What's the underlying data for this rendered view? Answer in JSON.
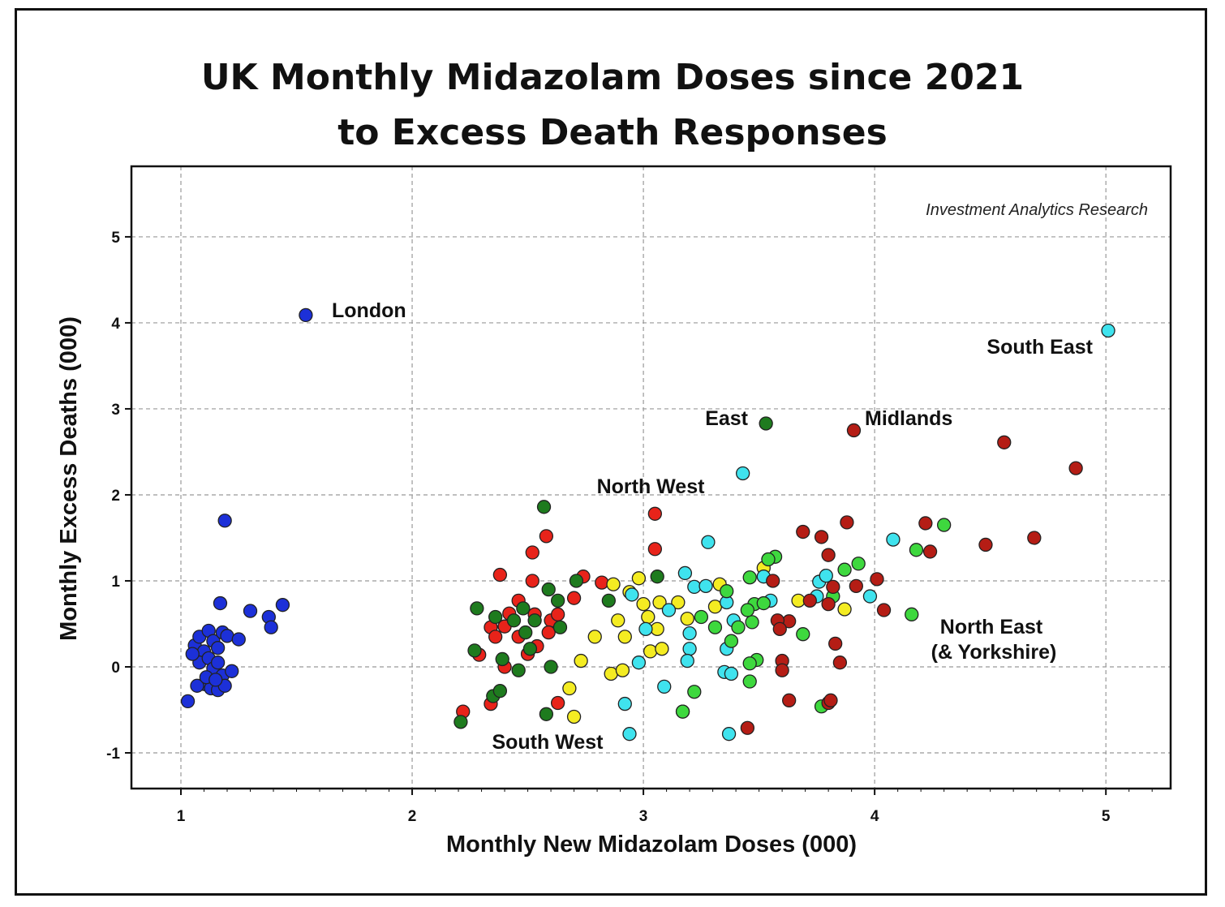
{
  "chart_data": {
    "type": "scatter",
    "title": [
      "UK Monthly Midazolam Doses since 2021",
      "to Excess Death Responses"
    ],
    "xlabel": "Monthly New Midazolam Doses (000)",
    "ylabel": "Monthly Excess Deaths (000)",
    "xlim": [
      0.786,
      5.28
    ],
    "ylim": [
      -1.415,
      5.82
    ],
    "xticks": [
      1,
      2,
      3,
      4,
      5
    ],
    "yticks": [
      -1,
      0,
      1,
      2,
      3,
      4,
      5
    ],
    "grid": true,
    "watermark": "Investment Analytics Research",
    "annotations": [
      "London",
      "South East",
      "East",
      "Midlands",
      "North West",
      "North East",
      "(& Yorkshire)",
      "South West"
    ],
    "series": [
      {
        "name": "London",
        "color": "#1c30d8",
        "points": [
          [
            1.54,
            4.09
          ],
          [
            1.19,
            1.7
          ],
          [
            1.17,
            0.74
          ],
          [
            1.3,
            0.65
          ],
          [
            1.44,
            0.72
          ],
          [
            1.38,
            0.58
          ],
          [
            1.39,
            0.46
          ],
          [
            1.03,
            -0.4
          ],
          [
            1.06,
            0.25
          ],
          [
            1.08,
            0.35
          ],
          [
            1.1,
            0.18
          ],
          [
            1.12,
            0.42
          ],
          [
            1.14,
            0.3
          ],
          [
            1.16,
            0.22
          ],
          [
            1.18,
            0.4
          ],
          [
            1.2,
            0.36
          ],
          [
            1.25,
            0.32
          ],
          [
            1.08,
            0.05
          ],
          [
            1.12,
            0.1
          ],
          [
            1.14,
            -0.02
          ],
          [
            1.16,
            0.05
          ],
          [
            1.18,
            -0.1
          ],
          [
            1.22,
            -0.05
          ],
          [
            1.1,
            -0.2
          ],
          [
            1.13,
            -0.25
          ],
          [
            1.16,
            -0.27
          ],
          [
            1.19,
            -0.22
          ],
          [
            1.07,
            -0.22
          ],
          [
            1.11,
            -0.12
          ],
          [
            1.15,
            -0.15
          ],
          [
            1.05,
            0.15
          ]
        ]
      },
      {
        "name": "South West",
        "color": "#e8231a",
        "points": [
          [
            3.05,
            1.78
          ],
          [
            3.05,
            1.37
          ],
          [
            2.58,
            1.52
          ],
          [
            2.52,
            1.33
          ],
          [
            2.38,
            1.07
          ],
          [
            2.52,
            1.0
          ],
          [
            2.74,
            1.05
          ],
          [
            2.82,
            0.98
          ],
          [
            2.46,
            0.77
          ],
          [
            2.7,
            0.8
          ],
          [
            2.53,
            0.61
          ],
          [
            2.42,
            0.62
          ],
          [
            2.34,
            0.46
          ],
          [
            2.36,
            0.35
          ],
          [
            2.46,
            0.35
          ],
          [
            2.54,
            0.24
          ],
          [
            2.6,
            0.54
          ],
          [
            2.63,
            0.61
          ],
          [
            2.29,
            0.14
          ],
          [
            2.4,
            0.0
          ],
          [
            2.22,
            -0.52
          ],
          [
            2.34,
            -0.43
          ],
          [
            2.63,
            -0.42
          ],
          [
            2.5,
            0.15
          ],
          [
            2.4,
            0.47
          ],
          [
            2.59,
            0.4
          ]
        ]
      },
      {
        "name": "East",
        "color": "#1e7b1e",
        "points": [
          [
            2.57,
            1.86
          ],
          [
            2.28,
            0.68
          ],
          [
            2.36,
            0.58
          ],
          [
            2.48,
            0.68
          ],
          [
            2.59,
            0.9
          ],
          [
            2.63,
            0.77
          ],
          [
            2.44,
            0.54
          ],
          [
            2.53,
            0.54
          ],
          [
            2.49,
            0.4
          ],
          [
            2.64,
            0.46
          ],
          [
            2.27,
            0.19
          ],
          [
            2.39,
            0.09
          ],
          [
            2.46,
            -0.04
          ],
          [
            2.6,
            0.0
          ],
          [
            2.35,
            -0.34
          ],
          [
            2.38,
            -0.28
          ],
          [
            2.21,
            -0.64
          ],
          [
            2.58,
            -0.55
          ],
          [
            2.71,
            1.0
          ],
          [
            2.85,
            0.77
          ],
          [
            3.06,
            1.05
          ],
          [
            3.53,
            2.83
          ],
          [
            2.51,
            0.21
          ]
        ]
      },
      {
        "name": "North West",
        "color": "#f4ec22",
        "points": [
          [
            2.87,
            0.96
          ],
          [
            2.98,
            1.03
          ],
          [
            2.94,
            0.87
          ],
          [
            3.0,
            0.73
          ],
          [
            3.07,
            0.75
          ],
          [
            2.89,
            0.54
          ],
          [
            2.92,
            0.35
          ],
          [
            2.79,
            0.35
          ],
          [
            2.73,
            0.07
          ],
          [
            2.68,
            -0.25
          ],
          [
            2.7,
            -0.58
          ],
          [
            2.86,
            -0.08
          ],
          [
            2.91,
            -0.04
          ],
          [
            3.02,
            0.58
          ],
          [
            3.06,
            0.44
          ],
          [
            3.03,
            0.18
          ],
          [
            3.08,
            0.21
          ],
          [
            3.15,
            0.75
          ],
          [
            3.19,
            0.56
          ],
          [
            3.33,
            0.96
          ],
          [
            3.31,
            0.7
          ],
          [
            3.17,
            -0.52
          ],
          [
            3.54,
            1.25
          ],
          [
            3.67,
            0.77
          ],
          [
            3.87,
            0.67
          ],
          [
            3.52,
            1.15
          ]
        ]
      },
      {
        "name": "South East",
        "color": "#3fe3ee",
        "points": [
          [
            5.01,
            3.91
          ],
          [
            3.43,
            2.25
          ],
          [
            3.28,
            1.45
          ],
          [
            3.18,
            1.09
          ],
          [
            3.22,
            0.93
          ],
          [
            3.27,
            0.94
          ],
          [
            3.36,
            0.75
          ],
          [
            2.95,
            0.84
          ],
          [
            3.11,
            0.66
          ],
          [
            3.01,
            0.44
          ],
          [
            3.2,
            0.39
          ],
          [
            3.2,
            0.21
          ],
          [
            2.98,
            0.05
          ],
          [
            3.19,
            0.07
          ],
          [
            3.09,
            -0.23
          ],
          [
            2.92,
            -0.43
          ],
          [
            2.94,
            -0.78
          ],
          [
            3.35,
            -0.06
          ],
          [
            3.38,
            -0.08
          ],
          [
            3.37,
            -0.78
          ],
          [
            3.52,
            1.05
          ],
          [
            3.55,
            0.77
          ],
          [
            3.36,
            0.21
          ],
          [
            3.76,
            0.99
          ],
          [
            3.79,
            1.06
          ],
          [
            3.98,
            0.82
          ],
          [
            4.08,
            1.48
          ],
          [
            3.39,
            0.54
          ],
          [
            3.75,
            0.82
          ]
        ]
      },
      {
        "name": "North East (& Yorkshire)",
        "color": "#3ed83e",
        "points": [
          [
            4.3,
            1.65
          ],
          [
            4.18,
            1.36
          ],
          [
            4.16,
            0.61
          ],
          [
            3.93,
            1.2
          ],
          [
            3.87,
            1.13
          ],
          [
            3.82,
            0.82
          ],
          [
            3.57,
            1.28
          ],
          [
            3.54,
            1.25
          ],
          [
            3.46,
            1.04
          ],
          [
            3.36,
            0.88
          ],
          [
            3.31,
            0.46
          ],
          [
            3.41,
            0.46
          ],
          [
            3.38,
            0.3
          ],
          [
            3.47,
            0.52
          ],
          [
            3.48,
            0.73
          ],
          [
            3.52,
            0.74
          ],
          [
            3.45,
            0.66
          ],
          [
            3.69,
            0.38
          ],
          [
            3.49,
            0.08
          ],
          [
            3.46,
            0.04
          ],
          [
            3.46,
            -0.17
          ],
          [
            3.22,
            -0.29
          ],
          [
            3.17,
            -0.52
          ],
          [
            3.77,
            -0.46
          ],
          [
            3.25,
            0.58
          ]
        ]
      },
      {
        "name": "Midlands",
        "color": "#b51d15",
        "points": [
          [
            3.91,
            2.75
          ],
          [
            4.56,
            2.61
          ],
          [
            4.87,
            2.31
          ],
          [
            4.69,
            1.5
          ],
          [
            4.48,
            1.42
          ],
          [
            4.22,
            1.67
          ],
          [
            4.24,
            1.34
          ],
          [
            3.88,
            1.68
          ],
          [
            3.69,
            1.57
          ],
          [
            3.77,
            1.51
          ],
          [
            3.8,
            1.3
          ],
          [
            4.01,
            1.02
          ],
          [
            3.92,
            0.94
          ],
          [
            3.82,
            0.93
          ],
          [
            3.56,
            1.0
          ],
          [
            3.72,
            0.77
          ],
          [
            3.8,
            0.73
          ],
          [
            4.04,
            0.66
          ],
          [
            3.63,
            0.53
          ],
          [
            3.58,
            0.54
          ],
          [
            3.59,
            0.44
          ],
          [
            3.6,
            0.07
          ],
          [
            3.6,
            -0.04
          ],
          [
            3.83,
            0.27
          ],
          [
            3.85,
            0.05
          ],
          [
            3.63,
            -0.39
          ],
          [
            3.8,
            -0.42
          ],
          [
            3.45,
            -0.71
          ],
          [
            3.81,
            -0.39
          ]
        ]
      }
    ]
  }
}
